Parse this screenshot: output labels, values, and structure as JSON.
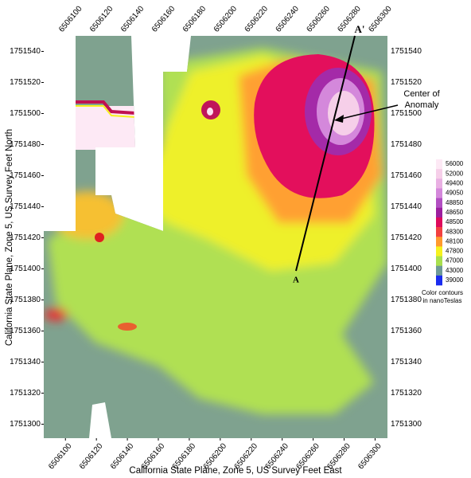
{
  "chart_data": {
    "type": "contour",
    "x_label": "California State Plane, Zone 5, US Survey Feet East",
    "y_label": "California State Plane, Zone 5, US Survey Feet North",
    "xlim": [
      6506086,
      6506308
    ],
    "ylim": [
      1751291,
      1751550
    ],
    "xticks": [
      6506100,
      6506120,
      6506140,
      6506160,
      6506180,
      6506200,
      6506220,
      6506240,
      6506260,
      6506280,
      6506300
    ],
    "yticks": [
      1751300,
      1751320,
      1751340,
      1751360,
      1751380,
      1751400,
      1751420,
      1751440,
      1751460,
      1751480,
      1751500,
      1751520,
      1751540
    ],
    "colorbar": {
      "levels": [
        56000,
        52000,
        49400,
        49050,
        48850,
        48650,
        48500,
        48300,
        48100,
        47800,
        47000,
        43000,
        39000
      ],
      "colors": [
        "#fde9f5",
        "#f6cfe9",
        "#e9b0e3",
        "#d488db",
        "#b24fc2",
        "#9c1f9e",
        "#de0a5c",
        "#f24040",
        "#ff9a2e",
        "#f6f21e",
        "#a9e04e",
        "#6e9a98",
        "#1a2cf0"
      ],
      "title": [
        "Color contours",
        "in nanoTeslas"
      ]
    },
    "annotations": {
      "center": [
        "Center of",
        "Anomaly"
      ],
      "start": "A",
      "end": "A'"
    }
  }
}
